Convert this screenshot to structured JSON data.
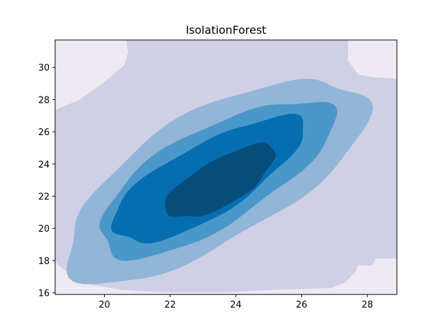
{
  "chart_data": {
    "type": "contour",
    "title": "IsolationForest",
    "xlabel": "",
    "ylabel": "",
    "xlim": [
      18.5,
      28.9
    ],
    "ylim": [
      15.9,
      31.7
    ],
    "x_ticks": [
      20,
      22,
      24,
      26,
      28
    ],
    "y_ticks": [
      16,
      18,
      20,
      22,
      24,
      26,
      28,
      30
    ],
    "x_tick_labels": [
      "20",
      "22",
      "24",
      "26",
      "28"
    ],
    "y_tick_labels": [
      "16",
      "18",
      "20",
      "22",
      "24",
      "26",
      "28",
      "30"
    ],
    "grid": false,
    "legend": "none",
    "colormap": "PuBu",
    "levels": [
      {
        "color": "#efe9f3",
        "description": "outermost (corners)"
      },
      {
        "color": "#cfd0e6"
      },
      {
        "color": "#93b5d7"
      },
      {
        "color": "#4a98c9"
      },
      {
        "color": "#056eb1"
      },
      {
        "color": "#074d7a",
        "description": "innermost (densest)"
      }
    ],
    "center": [
      23.2,
      23.2
    ]
  }
}
